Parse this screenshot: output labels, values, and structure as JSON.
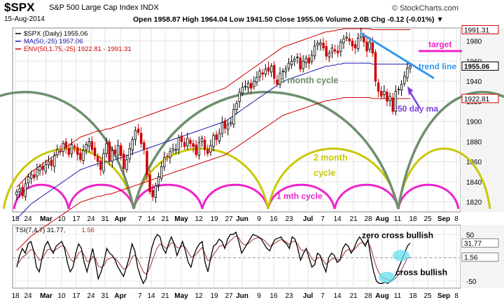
{
  "header": {
    "symbol": "$SPX",
    "name": "S&P 500 Large Cap Index INDX",
    "date": "15-Aug-2014",
    "ohlc": "Open 1958.87  High 1964.04  Low 1941.50  Close 1955.06  Volume 2.0B  Chg -0.12 (-0.01%) ▼",
    "credit": "© StockCharts.com"
  },
  "colors": {
    "up": "#000000",
    "down": "#cc0000",
    "ma": "#1a1aaa",
    "envelope": "#cc0000",
    "four_month": "#6e8f6e",
    "two_month": "#c8c800",
    "one_month": "#ee22cc",
    "trend": "#3399ee",
    "target": "#ee22cc",
    "annot_ma": "#7b3fe4",
    "tsi": "#000000",
    "tsi_signal": "#a33333"
  },
  "chart_data": [
    {
      "type": "candlestick",
      "legend": [
        {
          "key": "spx",
          "text": "$SPX (Daily) 1955.06",
          "color": "#000000"
        },
        {
          "key": "ma",
          "text": "MA(50,-25) 1957.06",
          "color": "#1a1aaa"
        },
        {
          "key": "env",
          "text": "ENV(50,1.75,-25) 1922.81 - 1991.31",
          "color": "#cc0000"
        }
      ],
      "ylim": [
        1810,
        1993
      ],
      "y_ticks": [
        1820,
        1840,
        1860,
        1880,
        1900,
        1920,
        1940,
        1960,
        1980
      ],
      "x_ticks": [
        "18",
        "24",
        "Mar",
        "10",
        "17",
        "24",
        "31",
        "Apr",
        "7",
        "14",
        "21",
        "May",
        "12",
        "19",
        "27",
        "Jun",
        "9",
        "16",
        "23",
        "Jul",
        "7",
        "14",
        "21",
        "28",
        "Aug",
        "11",
        "18",
        "25",
        "Sep",
        "8"
      ],
      "price_tags": [
        {
          "value": 1991.31,
          "text": "1991.31",
          "style": "env"
        },
        {
          "value": 1955.06,
          "text": "1955.06",
          "style": "last"
        },
        {
          "value": 1922.81,
          "text": "1922.81",
          "style": "env"
        }
      ],
      "closes": [
        1830,
        1833,
        1826,
        1838,
        1845,
        1847,
        1844,
        1852,
        1855,
        1852,
        1857,
        1860,
        1856,
        1866,
        1872,
        1870,
        1878,
        1874,
        1867,
        1877,
        1874,
        1867,
        1862,
        1871,
        1877,
        1880,
        1872,
        1866,
        1860,
        1852,
        1868,
        1878,
        1861,
        1871,
        1868,
        1876,
        1866,
        1853,
        1862,
        1873,
        1882,
        1891,
        1889,
        1878,
        1872,
        1847,
        1830,
        1825,
        1836,
        1845,
        1855,
        1864,
        1865,
        1870,
        1873,
        1872,
        1884,
        1880,
        1875,
        1883,
        1878,
        1875,
        1867,
        1879,
        1883,
        1872,
        1868,
        1876,
        1886,
        1882,
        1888,
        1899,
        1893,
        1897,
        1899,
        1912,
        1918,
        1929,
        1934,
        1935,
        1938,
        1933,
        1940,
        1944,
        1950,
        1947,
        1952,
        1950,
        1955,
        1943,
        1937,
        1948,
        1950,
        1952,
        1958,
        1960,
        1962,
        1964,
        1952,
        1960,
        1963,
        1958,
        1966,
        1975,
        1978,
        1978,
        1973,
        1965,
        1968,
        1973,
        1970,
        1968,
        1979,
        1982,
        1984,
        1980,
        1975,
        1973,
        1983,
        1987,
        1979,
        1970,
        1979,
        1968,
        1940,
        1930,
        1925,
        1930,
        1920,
        1925,
        1910,
        1930,
        1932,
        1937,
        1945,
        1953,
        1955.06
      ],
      "ma_values": [
        1803,
        1806,
        1809,
        1812,
        1815,
        1818,
        1820,
        1822,
        1824,
        1826,
        1828,
        1830,
        1832,
        1834,
        1836,
        1838,
        1840,
        1842,
        1844,
        1846,
        1848,
        1850,
        1852,
        1853,
        1854,
        1855,
        1856,
        1857,
        1858,
        1858,
        1859,
        1860,
        1860,
        1861,
        1862,
        1863,
        1864,
        1865,
        1866,
        1867,
        1868,
        1869,
        1870,
        1871,
        1872,
        1873,
        1874,
        1875,
        1876,
        1877,
        1878,
        1879,
        1880,
        1881,
        1882,
        1883,
        1884,
        1885,
        1886,
        1887,
        1888,
        1889,
        1890,
        1891,
        1892,
        1893,
        1894,
        1895,
        1896,
        1897,
        1898,
        1899,
        1900,
        1902,
        1904,
        1906,
        1908,
        1910,
        1912,
        1914,
        1916,
        1918,
        1920,
        1922,
        1924,
        1926,
        1928,
        1930,
        1932,
        1934,
        1936,
        1938,
        1940,
        1941,
        1942,
        1943,
        1944,
        1945,
        1946,
        1947,
        1948,
        1949,
        1950,
        1951,
        1952,
        1953,
        1954,
        1955,
        1955,
        1956,
        1956,
        1957,
        1957,
        1958,
        1958,
        1958,
        1958,
        1958,
        1958,
        1958,
        1958,
        1958,
        1958,
        1957,
        1957,
        1957,
        1957,
        1957,
        1957,
        1957,
        1957,
        1957,
        1957,
        1957,
        1957,
        1957,
        1957.06
      ],
      "annotations": [
        {
          "key": "four_month",
          "text": "4 month cycle"
        },
        {
          "key": "two_month_1",
          "text": "2 month"
        },
        {
          "key": "two_month_2",
          "text": "cycle"
        },
        {
          "key": "one_month",
          "text": "1 mth cycle"
        },
        {
          "key": "trend",
          "text": "trend line"
        },
        {
          "key": "target",
          "text": "target"
        },
        {
          "key": "ma50",
          "text": "50 day ma"
        }
      ]
    },
    {
      "type": "line",
      "legend": [
        {
          "key": "tsi",
          "text": "TSI(7,4,7) 31.77,",
          "color": "#000000"
        },
        {
          "key": "sig",
          "text": "1.56",
          "color": "#a33333"
        }
      ],
      "ylim": [
        -65,
        70
      ],
      "y_ticks": [
        50,
        0,
        -50
      ],
      "price_tags": [
        {
          "value": 31.77,
          "text": "31.77"
        },
        {
          "value": 1.56,
          "text": "1.56"
        }
      ],
      "tsi_values": [
        -20,
        5,
        20,
        10,
        30,
        35,
        15,
        -20,
        -30,
        0,
        25,
        35,
        20,
        10,
        25,
        30,
        35,
        20,
        -10,
        -30,
        -20,
        10,
        30,
        20,
        -10,
        -30,
        -5,
        20,
        -10,
        -45,
        -30,
        -10,
        20,
        10,
        5,
        -5,
        -20,
        -30,
        -40,
        -20,
        0,
        30,
        15,
        -20,
        -40,
        -55,
        -45,
        -10,
        20,
        40,
        50,
        45,
        20,
        10,
        30,
        45,
        30,
        5,
        20,
        35,
        15,
        -10,
        -20,
        5,
        20,
        30,
        35,
        -10,
        -30,
        0,
        25,
        30,
        40,
        35,
        20,
        40,
        50,
        50,
        55,
        35,
        10,
        20,
        30,
        40,
        50,
        48,
        45,
        40,
        30,
        20,
        15,
        30,
        40,
        42,
        45,
        35,
        30,
        20,
        45,
        40,
        20,
        -5,
        10,
        20,
        0,
        -20,
        -15,
        10,
        5,
        -15,
        -30,
        0,
        10,
        5,
        -10,
        -5,
        20,
        30,
        25,
        10,
        20,
        35,
        45,
        35,
        25,
        40,
        0,
        -30,
        -50,
        -55,
        -55,
        -52,
        -55,
        -50,
        -45,
        -35,
        -20,
        -5,
        10,
        25,
        31.77
      ],
      "signal_values": [
        -15,
        -8,
        2,
        5,
        12,
        18,
        16,
        5,
        -5,
        -3,
        8,
        18,
        18,
        15,
        18,
        22,
        26,
        24,
        12,
        -2,
        -8,
        -2,
        10,
        14,
        6,
        -8,
        -8,
        3,
        -1,
        -17,
        -21,
        -17,
        -5,
        -1,
        1,
        -1,
        -8,
        -16,
        -24,
        -22,
        -14,
        1,
        6,
        -3,
        -16,
        -30,
        -35,
        -26,
        -10,
        7,
        22,
        30,
        26,
        20,
        24,
        32,
        31,
        22,
        21,
        26,
        22,
        12,
        2,
        3,
        9,
        16,
        22,
        9,
        -6,
        -4,
        7,
        15,
        24,
        27,
        24,
        30,
        37,
        42,
        47,
        43,
        32,
        28,
        29,
        33,
        39,
        42,
        43,
        42,
        38,
        31,
        25,
        27,
        32,
        36,
        39,
        37,
        34,
        28,
        34,
        36,
        30,
        18,
        15,
        17,
        10,
        -2,
        -7,
        -1,
        1,
        -5,
        -14,
        -9,
        -3,
        -1,
        -4,
        -5,
        5,
        14,
        18,
        15,
        17,
        24,
        31,
        33,
        30,
        34,
        21,
        -1,
        -20,
        -33,
        -41,
        -44,
        -47,
        -48,
        -47,
        -43,
        -35,
        -24,
        -13,
        -1,
        1.56
      ],
      "annotations": [
        {
          "key": "zero_cross",
          "text": "zero cross bullish"
        },
        {
          "key": "cross",
          "text": "cross bullish"
        }
      ]
    }
  ]
}
